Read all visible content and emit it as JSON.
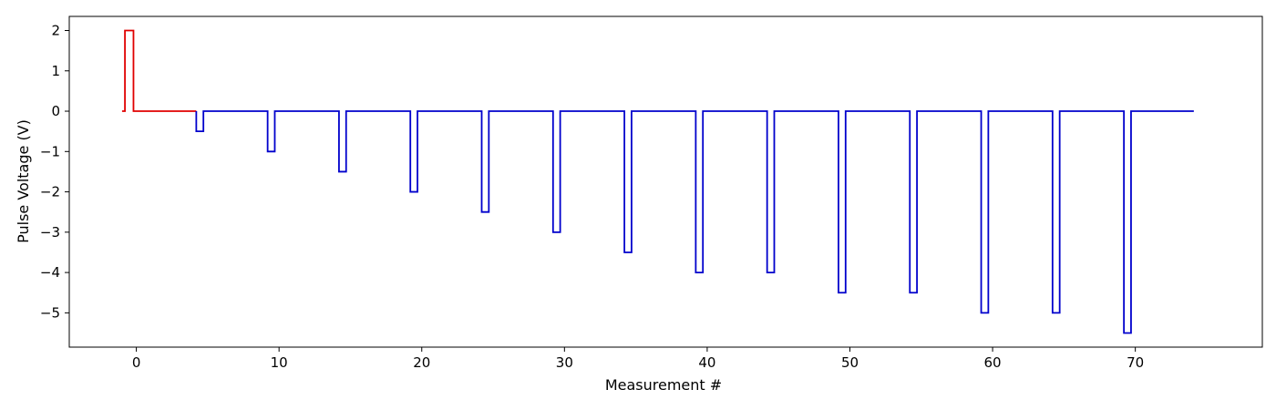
{
  "chart_data": {
    "type": "line",
    "title": "",
    "xlabel": "Measurement #",
    "ylabel": "Pulse Voltage (V)",
    "xlim": [
      -4.7,
      78.9
    ],
    "ylim": [
      -5.85,
      2.35
    ],
    "xticks": [
      0,
      10,
      20,
      30,
      40,
      50,
      60,
      70
    ],
    "yticks": [
      2,
      1,
      0,
      -1,
      -2,
      -3,
      -4,
      -5
    ],
    "xtick_labels": [
      "0",
      "10",
      "20",
      "30",
      "40",
      "50",
      "60",
      "70"
    ],
    "ytick_labels": [
      "2",
      "1",
      "0",
      "−1",
      "−2",
      "−3",
      "−4",
      "−5"
    ],
    "grid": false,
    "legend": null,
    "series": [
      {
        "color": "#e00000",
        "points": [
          [
            -1,
            0
          ],
          [
            -0.8,
            0
          ],
          [
            -0.8,
            2
          ],
          [
            -0.2,
            2
          ],
          [
            -0.2,
            0
          ],
          [
            4.2,
            0
          ]
        ]
      },
      {
        "color": "#0000cc",
        "pulse_width": 0.5,
        "start_x": 4.2,
        "end_x": 74.1,
        "pulses": [
          {
            "start": 4.2,
            "voltage": -0.5
          },
          {
            "start": 9.2,
            "voltage": -1.0
          },
          {
            "start": 14.2,
            "voltage": -1.5
          },
          {
            "start": 19.2,
            "voltage": -2.0
          },
          {
            "start": 24.2,
            "voltage": -2.5
          },
          {
            "start": 29.2,
            "voltage": -3.0
          },
          {
            "start": 34.2,
            "voltage": -3.5
          },
          {
            "start": 39.2,
            "voltage": -4.0
          },
          {
            "start": 44.2,
            "voltage": -4.0
          },
          {
            "start": 49.2,
            "voltage": -4.5
          },
          {
            "start": 54.2,
            "voltage": -4.5
          },
          {
            "start": 59.2,
            "voltage": -5.0
          },
          {
            "start": 64.2,
            "voltage": -5.0
          },
          {
            "start": 69.2,
            "voltage": -5.5
          }
        ]
      }
    ]
  }
}
